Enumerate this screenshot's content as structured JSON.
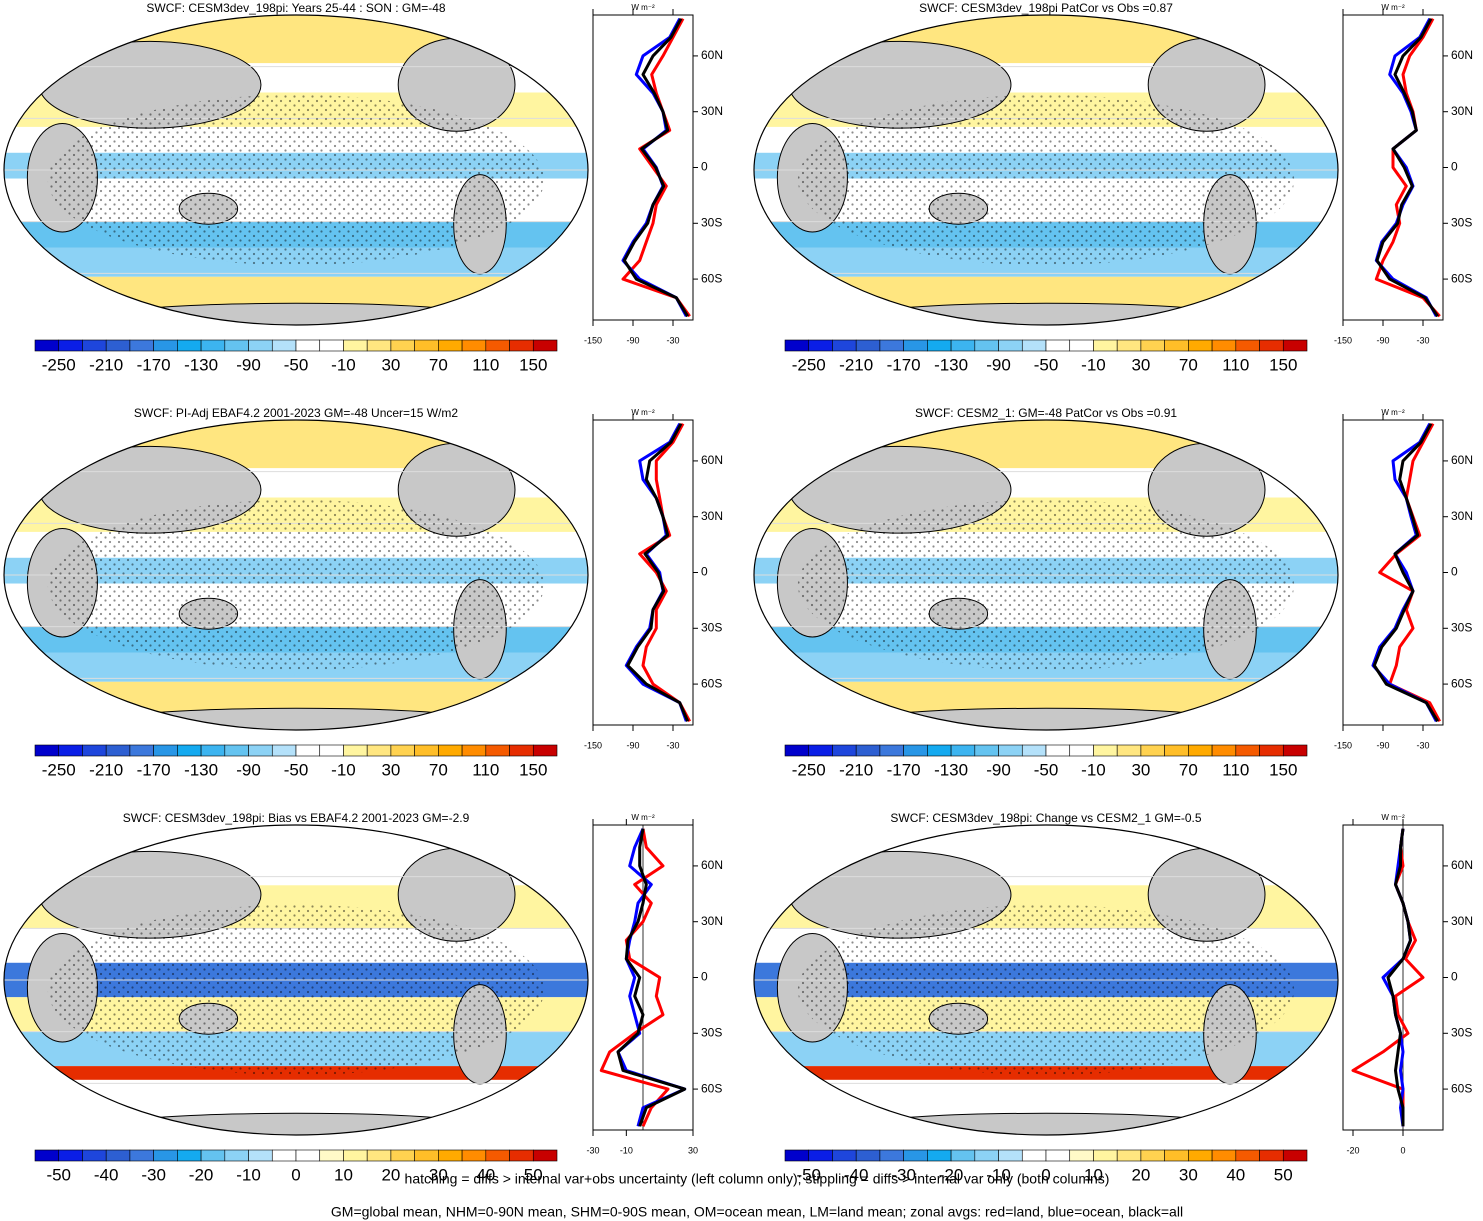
{
  "chart_data": [
    {
      "type": "map",
      "title": "SWCF: CESM3dev_198pi: Years 25-44 : SON : GM=-48",
      "colorbar": {
        "lim": [
          -270,
          170
        ],
        "ticks": [
          -250,
          -210,
          -170,
          -130,
          -90,
          -50,
          -10,
          30,
          70,
          110,
          150
        ],
        "colors": [
          "#0000cc",
          "#0a1ee6",
          "#1e46dc",
          "#2d5fd2",
          "#3c78dc",
          "#2896e6",
          "#14aaf0",
          "#3cb4f0",
          "#64c3f0",
          "#8cd2f5",
          "#b4e1fa",
          "#ffffff",
          "#ffffff",
          "#fff5a0",
          "#ffe680",
          "#ffd250",
          "#ffbe28",
          "#ffaa00",
          "#ff8c00",
          "#f55a00",
          "#e62d00",
          "#c80000"
        ]
      }
    },
    {
      "type": "line",
      "xlabel": "W m⁻²",
      "xlim": [
        -150,
        0
      ],
      "xticks": [
        -150,
        -90,
        -30
      ],
      "ylim": [
        -82,
        82
      ],
      "yticks": [
        {
          "value": 60,
          "label": "60N"
        },
        {
          "value": 30,
          "label": "30N"
        },
        0,
        {
          "value": -30,
          "label": "30S"
        },
        {
          "value": -60,
          "label": "60S"
        }
      ],
      "y": [
        80,
        70,
        60,
        50,
        40,
        30,
        20,
        10,
        0,
        -10,
        -20,
        -30,
        -40,
        -50,
        -60,
        -70,
        -80
      ],
      "series": [
        {
          "color": "#ff0000",
          "values": [
            -15,
            -30,
            -45,
            -62,
            -55,
            -45,
            -35,
            -80,
            -60,
            -40,
            -55,
            -60,
            -70,
            -80,
            -105,
            -25,
            -5
          ]
        },
        {
          "color": "#0000ff",
          "values": [
            -20,
            -35,
            -75,
            -85,
            -60,
            -45,
            -40,
            -75,
            -55,
            -45,
            -60,
            -70,
            -90,
            -105,
            -80,
            -25,
            -10
          ]
        },
        {
          "color": "#000000",
          "values": [
            -18,
            -33,
            -60,
            -75,
            -58,
            -45,
            -38,
            -77,
            -56,
            -44,
            -60,
            -68,
            -88,
            -103,
            -85,
            -25,
            -8
          ]
        }
      ]
    },
    {
      "type": "map",
      "title": "SWCF: CESM3dev_198pi PatCor vs Obs =0.87",
      "colorbar": {
        "lim": [
          -270,
          170
        ],
        "ticks": [
          -250,
          -210,
          -170,
          -130,
          -90,
          -50,
          -10,
          30,
          70,
          110,
          150
        ],
        "colors": [
          "#0000cc",
          "#0a1ee6",
          "#1e46dc",
          "#2d5fd2",
          "#3c78dc",
          "#2896e6",
          "#14aaf0",
          "#3cb4f0",
          "#64c3f0",
          "#8cd2f5",
          "#b4e1fa",
          "#ffffff",
          "#ffffff",
          "#fff5a0",
          "#ffe680",
          "#ffd250",
          "#ffbe28",
          "#ffaa00",
          "#ff8c00",
          "#f55a00",
          "#e62d00",
          "#c80000"
        ]
      }
    },
    {
      "type": "line",
      "xlabel": "W m⁻²",
      "xlim": [
        -150,
        0
      ],
      "xticks": [
        -150,
        -90,
        -30
      ],
      "ylim": [
        -82,
        82
      ],
      "yticks": [
        {
          "value": 60,
          "label": "60N"
        },
        {
          "value": 30,
          "label": "30N"
        },
        0,
        {
          "value": -30,
          "label": "30S"
        },
        {
          "value": -60,
          "label": "60S"
        }
      ],
      "y": [
        80,
        70,
        60,
        50,
        40,
        30,
        20,
        10,
        0,
        -10,
        -20,
        -30,
        -40,
        -50,
        -60,
        -70,
        -80
      ],
      "series": [
        {
          "color": "#ff0000",
          "values": [
            -15,
            -30,
            -50,
            -60,
            -55,
            -45,
            -40,
            -75,
            -75,
            -55,
            -70,
            -65,
            -75,
            -90,
            -100,
            -30,
            -5
          ]
        },
        {
          "color": "#0000ff",
          "values": [
            -20,
            -35,
            -72,
            -80,
            -60,
            -48,
            -40,
            -75,
            -55,
            -45,
            -60,
            -70,
            -92,
            -100,
            -75,
            -25,
            -10
          ]
        },
        {
          "color": "#000000",
          "values": [
            -18,
            -33,
            -60,
            -72,
            -58,
            -46,
            -40,
            -75,
            -58,
            -46,
            -62,
            -68,
            -90,
            -99,
            -80,
            -27,
            -8
          ]
        }
      ]
    },
    {
      "type": "map",
      "title": "SWCF: PI-Adj EBAF4.2 2001-2023 GM=-48 Uncer=15 W/m2",
      "colorbar": {
        "lim": [
          -270,
          170
        ],
        "ticks": [
          -250,
          -210,
          -170,
          -130,
          -90,
          -50,
          -10,
          30,
          70,
          110,
          150
        ],
        "colors": [
          "#0000cc",
          "#0a1ee6",
          "#1e46dc",
          "#2d5fd2",
          "#3c78dc",
          "#2896e6",
          "#14aaf0",
          "#3cb4f0",
          "#64c3f0",
          "#8cd2f5",
          "#b4e1fa",
          "#ffffff",
          "#ffffff",
          "#fff5a0",
          "#ffe680",
          "#ffd250",
          "#ffbe28",
          "#ffaa00",
          "#ff8c00",
          "#f55a00",
          "#e62d00",
          "#c80000"
        ]
      }
    },
    {
      "type": "line",
      "xlabel": "W m⁻²",
      "xlim": [
        -150,
        0
      ],
      "xticks": [
        -150,
        -90,
        -30
      ],
      "ylim": [
        -82,
        82
      ],
      "yticks": [
        {
          "value": 60,
          "label": "60N"
        },
        {
          "value": 30,
          "label": "30N"
        },
        0,
        {
          "value": -30,
          "label": "30S"
        },
        {
          "value": -60,
          "label": "60S"
        }
      ],
      "y": [
        80,
        70,
        60,
        50,
        40,
        30,
        20,
        10,
        0,
        -10,
        -20,
        -30,
        -40,
        -50,
        -60,
        -70,
        -80
      ],
      "series": [
        {
          "color": "#ff0000",
          "values": [
            -15,
            -30,
            -55,
            -55,
            -50,
            -45,
            -35,
            -80,
            -55,
            -40,
            -55,
            -55,
            -70,
            -75,
            -60,
            -20,
            -5
          ]
        },
        {
          "color": "#0000ff",
          "values": [
            -20,
            -35,
            -80,
            -75,
            -55,
            -45,
            -40,
            -70,
            -50,
            -45,
            -60,
            -65,
            -85,
            -100,
            -75,
            -20,
            -10
          ]
        },
        {
          "color": "#000000",
          "values": [
            -18,
            -33,
            -65,
            -70,
            -55,
            -45,
            -38,
            -72,
            -52,
            -44,
            -60,
            -63,
            -83,
            -98,
            -70,
            -20,
            -8
          ]
        }
      ]
    },
    {
      "type": "map",
      "title": "SWCF: CESM2_1: GM=-48 PatCor vs Obs =0.91",
      "colorbar": {
        "lim": [
          -270,
          170
        ],
        "ticks": [
          -250,
          -210,
          -170,
          -130,
          -90,
          -50,
          -10,
          30,
          70,
          110,
          150
        ],
        "colors": [
          "#0000cc",
          "#0a1ee6",
          "#1e46dc",
          "#2d5fd2",
          "#3c78dc",
          "#2896e6",
          "#14aaf0",
          "#3cb4f0",
          "#64c3f0",
          "#8cd2f5",
          "#b4e1fa",
          "#ffffff",
          "#ffffff",
          "#fff5a0",
          "#ffe680",
          "#ffd250",
          "#ffbe28",
          "#ffaa00",
          "#ff8c00",
          "#f55a00",
          "#e62d00",
          "#c80000"
        ]
      }
    },
    {
      "type": "line",
      "xlabel": "W m⁻²",
      "xlim": [
        -150,
        0
      ],
      "xticks": [
        -150,
        -90,
        -30
      ],
      "ylim": [
        -82,
        82
      ],
      "yticks": [
        {
          "value": 60,
          "label": "60N"
        },
        {
          "value": 30,
          "label": "30N"
        },
        0,
        {
          "value": -30,
          "label": "30S"
        },
        {
          "value": -60,
          "label": "60S"
        }
      ],
      "y": [
        80,
        70,
        60,
        50,
        40,
        30,
        20,
        10,
        0,
        -10,
        -20,
        -30,
        -40,
        -50,
        -60,
        -70,
        -80
      ],
      "series": [
        {
          "color": "#ff0000",
          "values": [
            -15,
            -30,
            -45,
            -50,
            -55,
            -45,
            -35,
            -70,
            -95,
            -45,
            -55,
            -45,
            -65,
            -70,
            -80,
            -20,
            -5
          ]
        },
        {
          "color": "#0000ff",
          "values": [
            -20,
            -35,
            -75,
            -72,
            -55,
            -48,
            -40,
            -72,
            -55,
            -45,
            -60,
            -72,
            -95,
            -105,
            -80,
            -25,
            -10
          ]
        },
        {
          "color": "#000000",
          "values": [
            -18,
            -33,
            -60,
            -65,
            -55,
            -46,
            -38,
            -72,
            -60,
            -45,
            -58,
            -70,
            -92,
            -103,
            -85,
            -25,
            -8
          ]
        }
      ]
    },
    {
      "type": "map",
      "title": "SWCF: CESM3dev_198pi: Bias vs EBAF4.2 2001-2023  GM=-2.9",
      "colorbar": {
        "lim": [
          -55,
          55
        ],
        "ticks": [
          -50,
          -40,
          -30,
          -20,
          -10,
          0,
          10,
          20,
          30,
          40,
          50
        ],
        "colors": [
          "#0000cc",
          "#0a1ee6",
          "#1e46dc",
          "#2d5fd2",
          "#3c78dc",
          "#2896e6",
          "#14aaf0",
          "#64c3f0",
          "#8cd2f5",
          "#b4e1fa",
          "#ffffff",
          "#ffffff",
          "#fffac8",
          "#fff5a0",
          "#ffe680",
          "#ffd250",
          "#ffbe28",
          "#ffaa00",
          "#ff8c00",
          "#f55a00",
          "#e62d00",
          "#c80000"
        ]
      }
    },
    {
      "type": "line",
      "xlabel": "W m⁻²",
      "xlim": [
        -30,
        30
      ],
      "xticks": [
        -30,
        -10,
        30
      ],
      "vline": 0,
      "ylim": [
        -82,
        82
      ],
      "yticks": [
        {
          "value": 60,
          "label": "60N"
        },
        {
          "value": 30,
          "label": "30N"
        },
        0,
        {
          "value": -30,
          "label": "30S"
        },
        {
          "value": -60,
          "label": "60S"
        }
      ],
      "y": [
        80,
        70,
        60,
        50,
        40,
        30,
        20,
        10,
        0,
        -10,
        -20,
        -30,
        -40,
        -50,
        -60,
        -70,
        -80
      ],
      "series": [
        {
          "color": "#ff0000",
          "values": [
            0,
            2,
            12,
            -5,
            5,
            0,
            -10,
            -8,
            10,
            8,
            12,
            -5,
            -20,
            -25,
            15,
            5,
            0
          ]
        },
        {
          "color": "#0000ff",
          "values": [
            0,
            -5,
            -8,
            5,
            -3,
            -5,
            -8,
            -10,
            -5,
            -8,
            -5,
            -2,
            -15,
            -10,
            25,
            0,
            -3
          ]
        },
        {
          "color": "#000000",
          "values": [
            0,
            -2,
            -2,
            2,
            0,
            -3,
            -9,
            -10,
            -2,
            -5,
            0,
            -3,
            -15,
            -12,
            25,
            2,
            -2
          ]
        }
      ]
    },
    {
      "type": "map",
      "title": "SWCF: CESM3dev_198pi: Change vs CESM2_1 GM=-0.5",
      "colorbar": {
        "lim": [
          -55,
          55
        ],
        "ticks": [
          -50,
          -40,
          -30,
          -20,
          -10,
          0,
          10,
          20,
          30,
          40,
          50
        ],
        "colors": [
          "#0000cc",
          "#0a1ee6",
          "#1e46dc",
          "#2d5fd2",
          "#3c78dc",
          "#2896e6",
          "#14aaf0",
          "#64c3f0",
          "#8cd2f5",
          "#b4e1fa",
          "#ffffff",
          "#ffffff",
          "#fffac8",
          "#fff5a0",
          "#ffe680",
          "#ffd250",
          "#ffbe28",
          "#ffaa00",
          "#ff8c00",
          "#f55a00",
          "#e62d00",
          "#c80000"
        ]
      }
    },
    {
      "type": "line",
      "xlabel": "W m⁻²",
      "xlim": [
        -24,
        16
      ],
      "xticks": [
        -20,
        0
      ],
      "vline": 0,
      "ylim": [
        -82,
        82
      ],
      "yticks": [
        {
          "value": 60,
          "label": "60N"
        },
        {
          "value": 30,
          "label": "30N"
        },
        0,
        {
          "value": -30,
          "label": "30S"
        },
        {
          "value": -60,
          "label": "60S"
        }
      ],
      "y": [
        80,
        70,
        60,
        50,
        40,
        30,
        20,
        10,
        0,
        -10,
        -20,
        -30,
        -40,
        -50,
        -60,
        -70,
        -80
      ],
      "series": [
        {
          "color": "#ff0000",
          "values": [
            0,
            -1,
            0,
            -3,
            0,
            2,
            5,
            1,
            8,
            -3,
            -2,
            2,
            -8,
            -20,
            0,
            0,
            0
          ]
        },
        {
          "color": "#0000ff",
          "values": [
            0,
            -1,
            -2,
            -3,
            0,
            2,
            3,
            0,
            -8,
            -4,
            -3,
            -1,
            0,
            -1,
            0,
            -1,
            0
          ]
        },
        {
          "color": "#000000",
          "values": [
            0,
            -1,
            -1,
            -3,
            0,
            2,
            3,
            0,
            -6,
            -4,
            -3,
            -1,
            -2,
            -3,
            -2,
            0,
            0
          ]
        }
      ]
    }
  ],
  "notes": [
    "hatching = diffs > internal var+obs uncertainty (left column only); stippling = diffs > internal var only (both columns)",
    "GM=global mean, NHM=0-90N mean, SHM=0-90S mean, OM=ocean mean, LM=land mean; zonal avgs: red=land, blue=ocean, black=all"
  ]
}
